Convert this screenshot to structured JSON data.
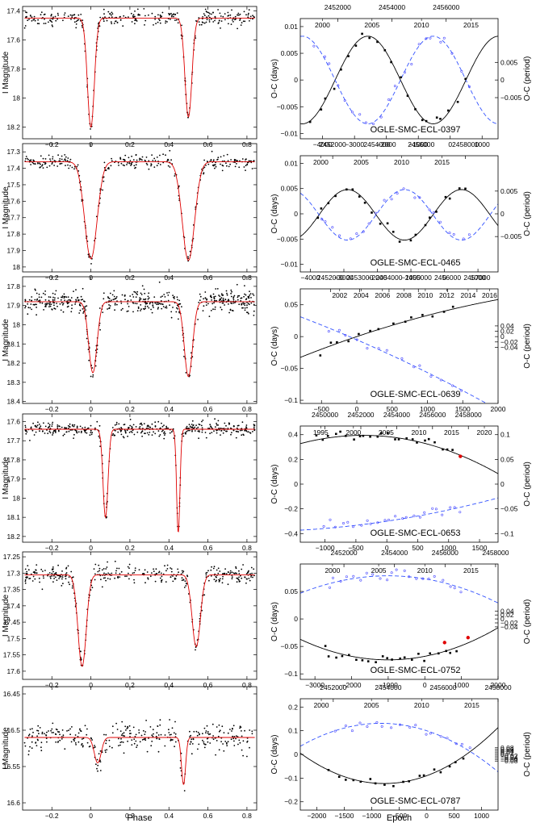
{
  "figure": {
    "phase_xlabel": "Phase",
    "epoch_xlabel": "Epoch"
  },
  "colors": {
    "model": "#e00000",
    "points": "#000000",
    "primary_fit": "#000000",
    "secondary_points": "#4a4aff",
    "secondary_fit": "#3050ff",
    "new_points": "#e00000"
  },
  "chart_data": [
    {
      "id": "lc-0397",
      "type": "scatter",
      "kind": "lightcurve",
      "ylabel": "I Magnitude",
      "xlim": [
        -0.35,
        0.85
      ],
      "ylim": [
        17.37,
        18.28
      ],
      "xticks": [
        -0.4,
        -0.2,
        0,
        0.2,
        0.4,
        0.6,
        0.8
      ],
      "xtick_labels": [
        "−0.4",
        "−0.2",
        "0",
        "0.2",
        "0.4",
        "0.6",
        "0.8"
      ],
      "yticks": [
        17.4,
        17.6,
        17.8,
        18,
        18.2
      ],
      "ytick_labels": [
        "17.4",
        "17.6",
        "17.8",
        "18",
        "18.2"
      ],
      "model": {
        "base": 17.45,
        "eclipses": [
          {
            "center": 0.0,
            "depth": 0.75,
            "width": 0.025
          },
          {
            "center": 0.5,
            "depth": 0.68,
            "width": 0.025
          }
        ]
      },
      "scatter": 0.025,
      "n_points": 320
    },
    {
      "id": "oc-0397",
      "type": "scatter",
      "kind": "oc",
      "title": "OGLE-SMC-ECL-0397",
      "ylabel": "O-C (days)",
      "ylabel_right": "O-C (period)",
      "xlim": [
        -4700,
        1500
      ],
      "ylim": [
        -0.011,
        0.0115
      ],
      "xticks": [
        -4000,
        -3000,
        -2000,
        -1000,
        0,
        1000
      ],
      "xtick_labels": [
        "−4000",
        "−3000",
        "−2000",
        "−1000",
        "0",
        "1000"
      ],
      "yticks": [
        -0.01,
        -0.005,
        0,
        0.005,
        0.01
      ],
      "ytick_labels": [
        "−0.01",
        "−0.005",
        "0",
        "0.005",
        "0.01"
      ],
      "yticks_right": [
        -0.005,
        0,
        0.005
      ],
      "ytick_labels_right": [
        "−0.005",
        "0",
        "0.005"
      ],
      "period_scale": 0.66,
      "top_jd": [
        2450000,
        2452000,
        2454000,
        2456000
      ],
      "top_jd_labels": [
        "2450000",
        "2452000",
        "2454000",
        "2456000"
      ],
      "top_year": [
        1995,
        2000,
        2005,
        2010,
        2015
      ],
      "top_year_labels": [
        "1995",
        "2000",
        "2005",
        "2010",
        "2015"
      ],
      "epoch_per_day": 0.85,
      "epoch_zero_jd": 2456150,
      "epoch_zero_year": 2012.9,
      "primary": {
        "amp": 0.0082,
        "period": 4100,
        "phase": -0.12,
        "offset": 0.0,
        "trend": 0,
        "curv": 0
      },
      "secondary": {
        "amp": -0.0082,
        "period": 4100,
        "phase": -0.12,
        "offset": 0.0,
        "trend": 0,
        "curv": 0
      },
      "points_range": [
        -4400,
        600
      ],
      "n_points": 22
    },
    {
      "id": "lc-0465",
      "type": "scatter",
      "kind": "lightcurve",
      "ylabel": "I Magnitude",
      "xlim": [
        -0.35,
        0.85
      ],
      "ylim": [
        17.25,
        18.03
      ],
      "xticks": [
        -0.4,
        -0.2,
        0,
        0.2,
        0.4,
        0.6,
        0.8
      ],
      "xtick_labels": [
        "−0.4",
        "−0.2",
        "0",
        "0.2",
        "0.4",
        "0.6",
        "0.8"
      ],
      "yticks": [
        17.3,
        17.4,
        17.5,
        17.6,
        17.7,
        17.8,
        17.9,
        18
      ],
      "ytick_labels": [
        "17.3",
        "17.4",
        "17.5",
        "17.6",
        "17.7",
        "17.8",
        "17.9",
        "18"
      ],
      "model": {
        "base": 17.36,
        "eclipses": [
          {
            "center": 0.0,
            "depth": 0.59,
            "width": 0.045
          },
          {
            "center": 0.5,
            "depth": 0.6,
            "width": 0.045
          }
        ]
      },
      "scatter": 0.022,
      "n_points": 320
    },
    {
      "id": "oc-0465",
      "type": "scatter",
      "kind": "oc",
      "title": "OGLE-SMC-ECL-0465",
      "ylabel": "O-C (days)",
      "ylabel_right": "O-C (period)",
      "xlim": [
        -4300,
        1600
      ],
      "ylim": [
        -0.0115,
        0.0115
      ],
      "xticks": [
        -4000,
        -3000,
        -2000,
        -1000,
        0,
        1000
      ],
      "xtick_labels": [
        "−4000",
        "−3000",
        "−2000",
        "−1000",
        "0",
        "1000"
      ],
      "yticks": [
        -0.01,
        -0.005,
        0,
        0.005,
        0.01
      ],
      "ytick_labels": [
        "−0.01",
        "−0.005",
        "0",
        "0.005",
        "0.01"
      ],
      "yticks_right": [
        -0.005,
        0,
        0.005
      ],
      "ytick_labels_right": [
        "−0.005",
        "0",
        "0.005"
      ],
      "period_scale": 0.9,
      "top_jd": [
        2450000,
        2452000,
        2454000,
        2456000,
        2458000
      ],
      "top_jd_labels": [
        "2450000",
        "2452000",
        "2454000",
        "2456000",
        "2458000"
      ],
      "top_year": [
        1995,
        2000,
        2005,
        2010,
        2015
      ],
      "top_year_labels": [
        "1995",
        "2000",
        "2005",
        "2010",
        "2015"
      ],
      "epoch_per_day": 0.66,
      "epoch_zero_jd": 2457050,
      "epoch_zero_year": 2015.3,
      "primary": {
        "amp": 0.005,
        "period": 3400,
        "phase": 0.1,
        "offset": -0.0002,
        "trend": 0,
        "curv": 0
      },
      "secondary": {
        "amp": -0.005,
        "period": 3400,
        "phase": 0.1,
        "offset": -0.0002,
        "trend": 0,
        "curv": 0
      },
      "points_range": [
        -3900,
        800
      ],
      "n_points": 22
    },
    {
      "id": "lc-0639",
      "type": "scatter",
      "kind": "lightcurve",
      "ylabel": "I Magnitude",
      "xlim": [
        -0.35,
        0.85
      ],
      "ylim": [
        17.75,
        18.41
      ],
      "xticks": [
        -0.4,
        -0.2,
        0,
        0.2,
        0.4,
        0.6,
        0.8
      ],
      "xtick_labels": [
        "−0.4",
        "−0.2",
        "0",
        "0.2",
        "0.4",
        "0.6",
        "0.8"
      ],
      "yticks": [
        17.8,
        17.9,
        18,
        18.1,
        18.2,
        18.3,
        18.4
      ],
      "ytick_labels": [
        "17.8",
        "17.9",
        "18",
        "18.1",
        "18.2",
        "18.3",
        "18.4"
      ],
      "model": {
        "base": 17.88,
        "eclipses": [
          {
            "center": 0.01,
            "depth": 0.37,
            "width": 0.03
          },
          {
            "center": 0.5,
            "depth": 0.39,
            "width": 0.03
          }
        ]
      },
      "scatter": 0.03,
      "n_points": 520
    },
    {
      "id": "oc-0639",
      "type": "scatter",
      "kind": "oc",
      "title": "OGLE-SMC-ECL-0639",
      "ylabel": "O-C (days)",
      "ylabel_right": "O-C (period)",
      "xlim": [
        -800,
        2000
      ],
      "ylim": [
        -0.105,
        0.075
      ],
      "xticks": [
        -500,
        0,
        500,
        1000,
        1500,
        2000
      ],
      "xtick_labels": [
        "−500",
        "0",
        "500",
        "1000",
        "1500",
        "2000"
      ],
      "yticks": [
        -0.1,
        -0.05,
        0,
        0.05
      ],
      "ytick_labels": [
        "−0.1",
        "−0.05",
        "0",
        "0.05"
      ],
      "yticks_right": [
        -0.04,
        -0.02,
        0,
        0.02,
        0.04
      ],
      "ytick_labels_right": [
        "−0.04",
        "−0.02",
        "0",
        "0.02",
        "0.04"
      ],
      "period_scale": 0.42,
      "top_jd": [
        2452000,
        2453000,
        2454000,
        2455000,
        2456000,
        2457000
      ],
      "top_jd_labels": [
        "2452000",
        "2453000",
        "2454000",
        "2455000",
        "2456000",
        "2457000"
      ],
      "top_year": [
        2002,
        2004,
        2006,
        2008,
        2010,
        2012,
        2014,
        2016
      ],
      "top_year_labels": [
        "2002",
        "2004",
        "2006",
        "2008",
        "2010",
        "2012",
        "2014",
        "2016"
      ],
      "epoch_per_day": 0.415,
      "epoch_zero_jd": 2452900,
      "epoch_zero_year": 2003.6,
      "primary": {
        "amp": 0,
        "period": 1,
        "phase": 0,
        "offset": 0.0,
        "trend": 3.75e-05,
        "curv": -4.2e-09
      },
      "secondary": {
        "amp": 0,
        "period": 1,
        "phase": 0,
        "offset": -0.005,
        "trend": -4.8e-05,
        "curv": -3.5e-09
      },
      "points_range": [
        -600,
        1500
      ],
      "n_points": 14
    },
    {
      "id": "lc-0653",
      "type": "scatter",
      "kind": "lightcurve",
      "ylabel": "I Magnitude",
      "xlim": [
        -0.35,
        0.85
      ],
      "ylim": [
        17.56,
        18.23
      ],
      "xticks": [
        -0.4,
        -0.2,
        0,
        0.2,
        0.4,
        0.6,
        0.8
      ],
      "xtick_labels": [
        "−0.4",
        "−0.2",
        "0",
        "0.2",
        "0.4",
        "0.6",
        "0.8"
      ],
      "yticks": [
        17.6,
        17.7,
        17.8,
        17.9,
        18,
        18.1,
        18.2
      ],
      "ytick_labels": [
        "17.6",
        "17.7",
        "17.8",
        "17.9",
        "18",
        "18.1",
        "18.2"
      ],
      "model": {
        "base": 17.64,
        "eclipses": [
          {
            "center": 0.075,
            "depth": 0.46,
            "width": 0.018
          },
          {
            "center": 0.448,
            "depth": 0.54,
            "width": 0.012
          }
        ]
      },
      "scatter": 0.018,
      "n_points": 420
    },
    {
      "id": "oc-0653",
      "type": "scatter",
      "kind": "oc",
      "title": "OGLE-SMC-ECL-0653",
      "ylabel": "O-C (days)",
      "ylabel_right": "O-C (period)",
      "xlim": [
        -1400,
        1800
      ],
      "ylim": [
        -0.47,
        0.47
      ],
      "xticks": [
        -1000,
        -500,
        0,
        500,
        1000,
        1500
      ],
      "xtick_labels": [
        "−1000",
        "−500",
        "0",
        "500",
        "1000",
        "1500"
      ],
      "yticks": [
        -0.4,
        -0.2,
        0,
        0.2,
        0.4
      ],
      "ytick_labels": [
        "−0.4",
        "−0.2",
        "0",
        "0.2",
        "0.4"
      ],
      "yticks_right": [
        -0.1,
        -0.05,
        0,
        0.05,
        0.1
      ],
      "ytick_labels_right": [
        "−0.1",
        "−0.05",
        "0",
        "0.05",
        "0.1"
      ],
      "period_scale": 4.0,
      "top_jd": [
        2450000,
        2452000,
        2454000,
        2456000,
        2458000
      ],
      "top_jd_labels": [
        "2450000",
        "2452000",
        "2454000",
        "2456000",
        "2458000"
      ],
      "top_year": [
        1995,
        2000,
        2005,
        2010,
        2015,
        2020
      ],
      "top_year_labels": [
        "1995",
        "2000",
        "2005",
        "2010",
        "2015",
        "2020"
      ],
      "epoch_per_day": 0.29,
      "epoch_zero_jd": 2453450,
      "epoch_zero_year": 2005.1,
      "primary": {
        "amp": 0,
        "period": 1,
        "phase": 0,
        "offset": 0.385,
        "trend": -5e-05,
        "curv": -6.5e-08
      },
      "secondary": {
        "amp": 0,
        "period": 1,
        "phase": 0,
        "offset": -0.3,
        "trend": 7.5e-05,
        "curv": 1.65e-08
      },
      "points_range": [
        -1150,
        1150
      ],
      "n_points": 24,
      "new_points": [
        {
          "x": 1190,
          "y": 0.225
        }
      ]
    },
    {
      "id": "lc-0752",
      "type": "scatter",
      "kind": "lightcurve",
      "ylabel": "I Magnitude",
      "xlim": [
        -0.35,
        0.85
      ],
      "ylim": [
        17.235,
        17.625
      ],
      "xticks": [
        -0.4,
        -0.2,
        0,
        0.2,
        0.4,
        0.6,
        0.8
      ],
      "xtick_labels": [
        "−0.4",
        "−0.2",
        "0",
        "0.2",
        "0.4",
        "0.6",
        "0.8"
      ],
      "yticks": [
        17.25,
        17.3,
        17.35,
        17.4,
        17.45,
        17.5,
        17.55,
        17.6
      ],
      "ytick_labels": [
        "17.25",
        "17.3",
        "17.35",
        "17.4",
        "17.45",
        "17.5",
        "17.55",
        "17.6"
      ],
      "model": {
        "base": 17.305,
        "eclipses": [
          {
            "center": -0.045,
            "depth": 0.28,
            "width": 0.03
          },
          {
            "center": 0.54,
            "depth": 0.22,
            "width": 0.03
          }
        ]
      },
      "scatter": 0.013,
      "n_points": 380
    },
    {
      "id": "oc-0752",
      "type": "scatter",
      "kind": "oc",
      "title": "OGLE-SMC-ECL-0752",
      "ylabel": "O-C (days)",
      "ylabel_right": "O-C (period)",
      "xlim": [
        -3400,
        2000
      ],
      "ylim": [
        -0.11,
        0.1
      ],
      "xticks": [
        -3000,
        -2000,
        -1000,
        0,
        1000,
        2000
      ],
      "xtick_labels": [
        "−3000",
        "−2000",
        "−1000",
        "0",
        "1000",
        "2000"
      ],
      "yticks": [
        -0.1,
        -0.05,
        0,
        0.05
      ],
      "ytick_labels": [
        "−0.1",
        "−0.05",
        "0",
        "0.05"
      ],
      "yticks_right": [
        -0.04,
        -0.02,
        0,
        0.02,
        0.04
      ],
      "ytick_labels_right": [
        "−0.04",
        "−0.02",
        "0",
        "0.02",
        "0.04"
      ],
      "period_scale": 0.36,
      "top_jd": [
        2450000,
        2452000,
        2454000,
        2456000,
        2458000
      ],
      "top_jd_labels": [
        "2450000",
        "2452000",
        "2454000",
        "2456000",
        "2458000"
      ],
      "top_year": [
        1995,
        2000,
        2005,
        2010,
        2015,
        2020
      ],
      "top_year_labels": [
        "1995",
        "2000",
        "2005",
        "2010",
        "2015",
        "2020"
      ],
      "epoch_per_day": 0.69,
      "epoch_zero_jd": 2455200,
      "epoch_zero_year": 2010.0,
      "primary": {
        "amp": 0,
        "period": 1,
        "phase": 0,
        "offset": -0.068,
        "trend": 1.3e-05,
        "curv": 6.5e-09
      },
      "secondary": {
        "amp": 0,
        "period": 1,
        "phase": 0,
        "offset": 0.073,
        "trend": -1.1e-05,
        "curv": -5.5e-09
      },
      "points_range": [
        -2800,
        1000
      ],
      "n_points": 22,
      "new_points": [
        {
          "x": 540,
          "y": -0.043
        },
        {
          "x": 1180,
          "y": -0.034
        }
      ]
    },
    {
      "id": "lc-0787",
      "type": "scatter",
      "kind": "lightcurve",
      "ylabel": "I Magnitude",
      "xlim": [
        -0.35,
        0.85
      ],
      "ylim": [
        16.44,
        16.61
      ],
      "xticks": [
        -0.4,
        -0.2,
        0,
        0.2,
        0.4,
        0.6,
        0.8
      ],
      "xtick_labels": [
        "−0.4",
        "−0.2",
        "0",
        "0.2",
        "0.4",
        "0.6",
        "0.8"
      ],
      "yticks": [
        16.45,
        16.5,
        16.55,
        16.6
      ],
      "ytick_labels": [
        "16.45",
        "16.5",
        "16.55",
        "16.6"
      ],
      "model": {
        "base": 16.51,
        "eclipses": [
          {
            "center": 0.035,
            "depth": 0.035,
            "width": 0.025
          },
          {
            "center": 0.475,
            "depth": 0.065,
            "width": 0.015
          }
        ]
      },
      "scatter": 0.01,
      "n_points": 330
    },
    {
      "id": "oc-0787",
      "type": "scatter",
      "kind": "oc",
      "title": "OGLE-SMC-ECL-0787",
      "ylabel": "O-C (days)",
      "ylabel_right": "O-C (period)",
      "xlim": [
        -2300,
        1300
      ],
      "ylim": [
        -0.235,
        0.235
      ],
      "xticks": [
        -2000,
        -1500,
        -1000,
        -500,
        0,
        500,
        1000
      ],
      "xtick_labels": [
        "−2000",
        "−1500",
        "−1000",
        "−500",
        "0",
        "500",
        "1000"
      ],
      "yticks": [
        -0.2,
        -0.1,
        0,
        0.1,
        0.2
      ],
      "ytick_labels": [
        "−0.2",
        "−0.1",
        "0",
        "0.1",
        "0.2"
      ],
      "yticks_right": [
        -0.08,
        -0.06,
        -0.04,
        -0.02,
        0,
        0.02,
        0.04,
        0.06,
        0.08
      ],
      "ytick_labels_right": [
        "−0.08",
        "−0.06",
        "−0.04",
        "−0.02",
        "0",
        "0.02",
        "0.04",
        "0.06",
        "0.08"
      ],
      "period_scale": 0.35,
      "top_jd": [
        2450000,
        2452000,
        2454000,
        2456000,
        2458000
      ],
      "top_jd_labels": [
        "2450000",
        "2452000",
        "2454000",
        "2456000",
        "2458000"
      ],
      "top_year": [
        1995,
        2000,
        2005,
        2010,
        2015
      ],
      "top_year_labels": [
        "1995",
        "2000",
        "2005",
        "2010",
        "2015"
      ],
      "epoch_per_day": 0.5,
      "epoch_zero_jd": 2455400,
      "epoch_zero_year": 2010.5,
      "primary": {
        "amp": 0,
        "period": 1,
        "phase": 0,
        "offset": -0.09,
        "trend": 8.5e-05,
        "curv": 5.5e-08
      },
      "secondary": {
        "amp": 0,
        "period": 1,
        "phase": 0,
        "offset": 0.1,
        "trend": -7.5e-05,
        "curv": -4.5e-08
      },
      "points_range": [
        -1800,
        800
      ],
      "n_points": 18
    }
  ]
}
